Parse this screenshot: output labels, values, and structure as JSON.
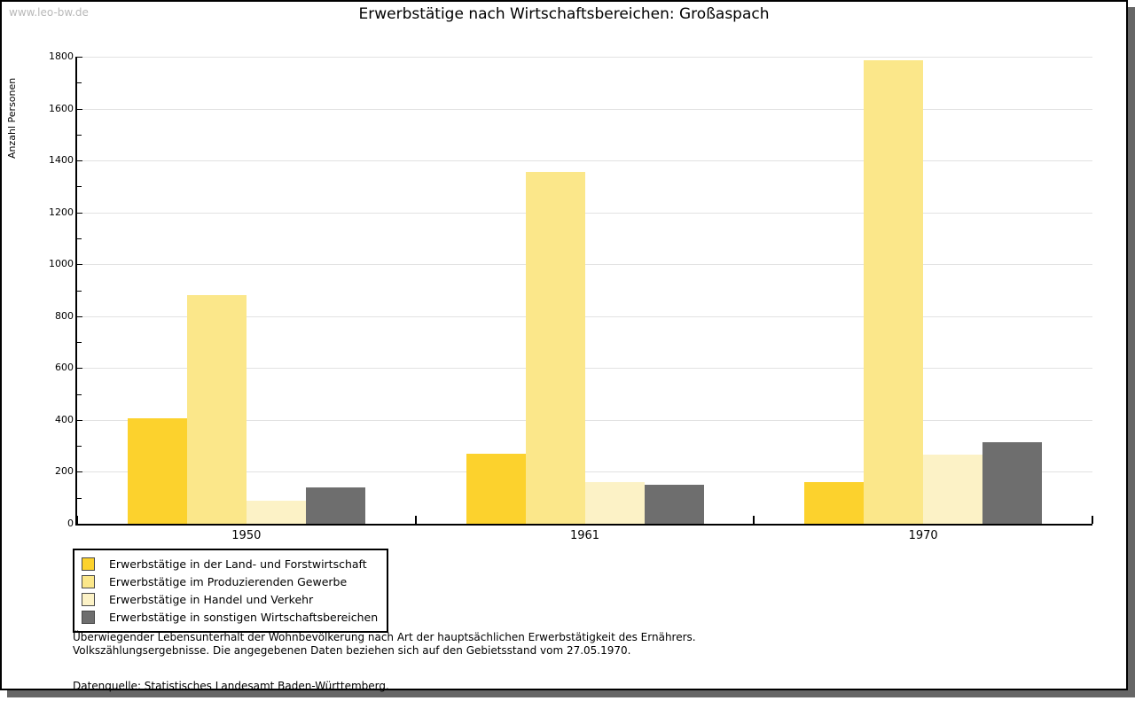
{
  "watermark": "www.leo-bw.de",
  "chart_data": {
    "type": "bar",
    "title": "Erwerbstätige nach Wirtschaftsbereichen: Großaspach",
    "ylabel": "Anzahl Personen",
    "xlabel": "",
    "categories": [
      "1950",
      "1961",
      "1970"
    ],
    "series": [
      {
        "name": "Erwerbstätige in der Land- und Forstwirtschaft",
        "color": "#fcd22d",
        "values": [
          405,
          270,
          160
        ]
      },
      {
        "name": "Erwerbstätige im Produzierenden Gewerbe",
        "color": "#fbe78a",
        "values": [
          880,
          1355,
          1785
        ]
      },
      {
        "name": "Erwerbstätige in Handel und Verkehr",
        "color": "#fcf2c6",
        "values": [
          90,
          160,
          265
        ]
      },
      {
        "name": "Erwerbstätige in sonstigen Wirtschaftsbereichen",
        "color": "#6e6e6e",
        "values": [
          140,
          150,
          315
        ]
      }
    ],
    "ylim": [
      0,
      1800
    ],
    "ytick_step": 200,
    "minor_tick_step": 100,
    "grid": true,
    "legend_position": "bottom-left"
  },
  "footnotes": {
    "line1": "Überwiegender Lebensunterhalt der Wohnbevölkerung nach Art der hauptsächlichen Erwerbstätigkeit des Ernährers.",
    "line2": "Volkszählungsergebnisse. Die angegebenen Daten beziehen sich auf den Gebietsstand vom 27.05.1970.",
    "source": "Datenquelle: Statistisches Landesamt Baden-Württemberg."
  }
}
